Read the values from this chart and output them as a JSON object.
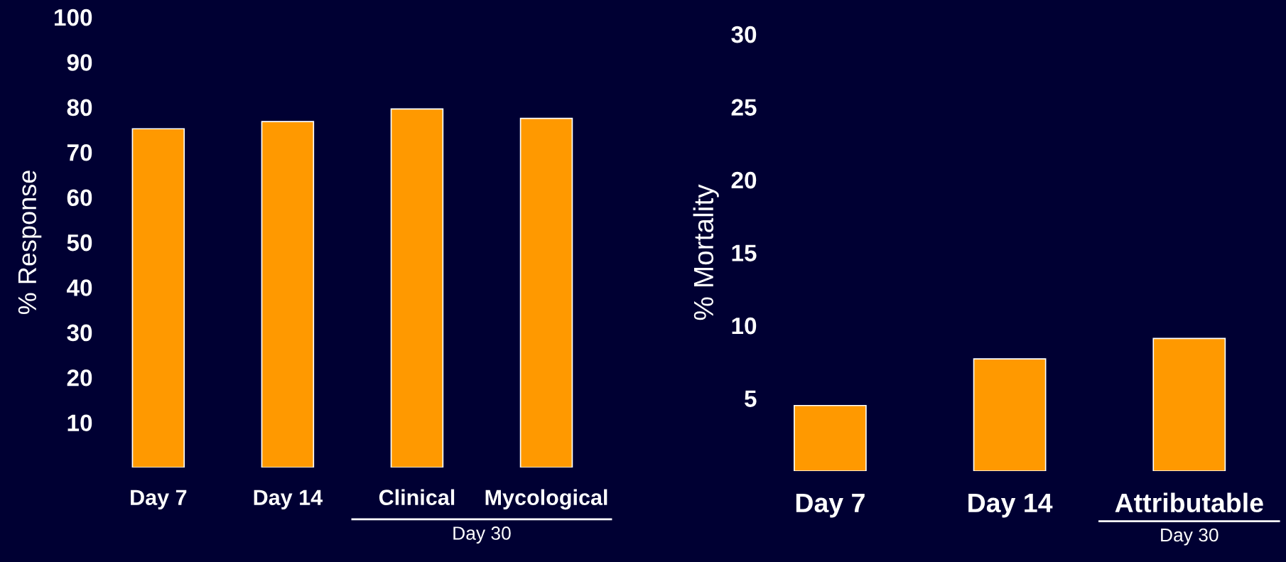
{
  "chart_data": [
    {
      "type": "bar",
      "ylabel": "% Response",
      "categories": [
        "Day 7",
        "Day 14",
        "Clinical",
        "Mycological"
      ],
      "values": [
        75.2,
        76.8,
        79.6,
        77.5
      ],
      "color": "#ff9900",
      "ylim": [
        0,
        100
      ],
      "yticks": [
        10,
        20,
        30,
        40,
        50,
        60,
        70,
        80,
        90,
        100
      ],
      "annotations": [
        "Day 30"
      ]
    },
    {
      "type": "bar",
      "ylabel": "% Mortality",
      "categories": [
        "Day 7",
        "Day 14",
        "Attributable"
      ],
      "values": [
        4.5,
        7.7,
        9.1
      ],
      "color": "#ff9900",
      "ylim": [
        0,
        30
      ],
      "yticks": [
        5,
        10,
        15,
        20,
        25,
        30
      ],
      "annotations": [
        "Day 30"
      ]
    }
  ]
}
